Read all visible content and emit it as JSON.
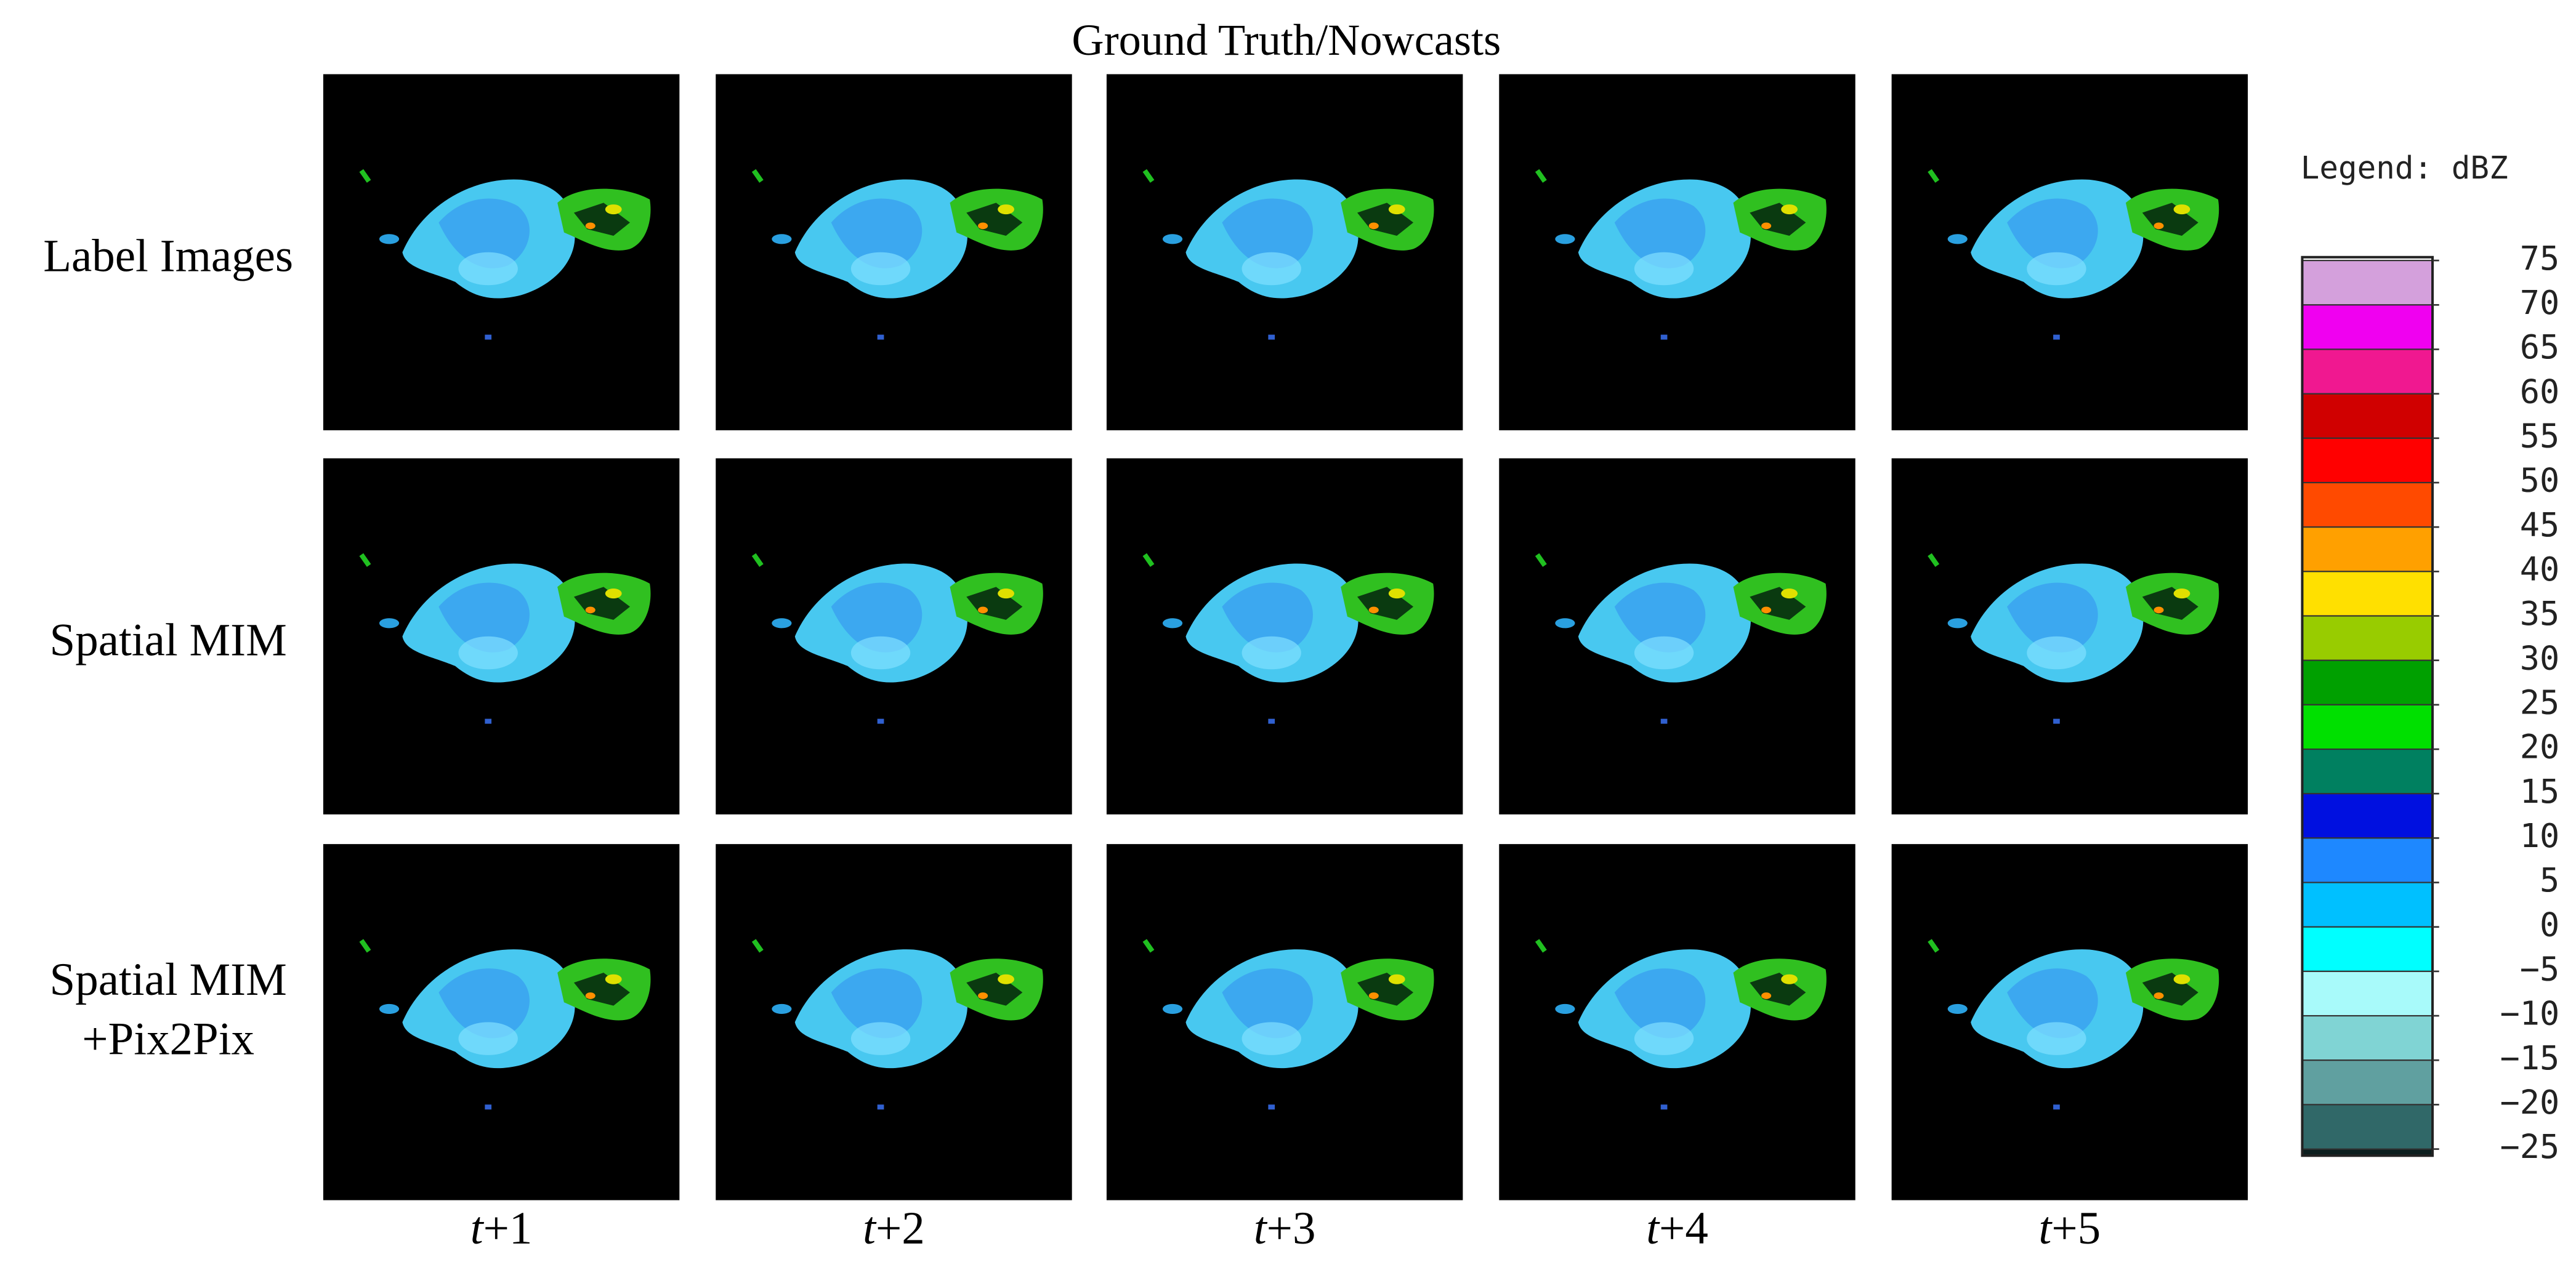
{
  "title": "Ground Truth/Nowcasts",
  "rows": [
    [
      "Label Images"
    ],
    [
      "Spatial MIM"
    ],
    [
      "Spatial MIM",
      "+Pix2Pix"
    ]
  ],
  "columns": [
    "t+1",
    "t+2",
    "t+3",
    "t+4",
    "t+5"
  ],
  "legend": {
    "title": "Legend: dBZ",
    "ticks": [
      75,
      70,
      65,
      60,
      55,
      50,
      45,
      40,
      35,
      30,
      25,
      20,
      15,
      10,
      5,
      0,
      {
        "value": -5,
        "label": "−5"
      },
      {
        "value": -10,
        "label": "−10"
      },
      {
        "value": -15,
        "label": "−15"
      },
      {
        "value": -20,
        "label": "−20"
      },
      {
        "value": -25,
        "label": "−25"
      }
    ],
    "colors": [
      "#d4a0dc",
      "#f000f0",
      "#f01890",
      "#d00000",
      "#ff0000",
      "#ff4a00",
      "#ffa000",
      "#ffe000",
      "#98cc00",
      "#00a000",
      "#00e000",
      "#008060",
      "#0010e0",
      "#1e88ff",
      "#00c0ff",
      "#00ffff",
      "#a8fafa",
      "#80d4d4",
      "#60a0a0",
      "#306868",
      "#0c1e1e"
    ]
  }
}
